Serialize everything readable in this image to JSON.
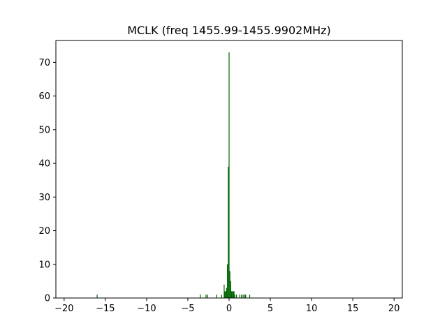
{
  "chart_data": {
    "type": "bar",
    "title": "MCLK (freq 1455.99-1455.9902MHz)",
    "xlabel": "",
    "ylabel": "",
    "xlim": [
      -21,
      21
    ],
    "ylim": [
      0,
      76.5
    ],
    "xticks": [
      -20,
      -15,
      -10,
      -5,
      0,
      5,
      10,
      15,
      20
    ],
    "xtick_labels": [
      "−20",
      "−15",
      "−10",
      "−5",
      "0",
      "5",
      "10",
      "15",
      "20"
    ],
    "yticks": [
      0,
      10,
      20,
      30,
      40,
      50,
      60,
      70
    ],
    "ytick_labels": [
      "0",
      "10",
      "20",
      "30",
      "40",
      "50",
      "60",
      "70"
    ],
    "grid": false,
    "bar_color": "#006400",
    "bar_width": 0.1,
    "bins": [
      {
        "x": -16.0,
        "value": 1
      },
      {
        "x": -3.5,
        "value": 1
      },
      {
        "x": -2.8,
        "value": 1
      },
      {
        "x": -2.6,
        "value": 1
      },
      {
        "x": -1.5,
        "value": 1
      },
      {
        "x": -0.9,
        "value": 1
      },
      {
        "x": -0.6,
        "value": 4
      },
      {
        "x": -0.5,
        "value": 2
      },
      {
        "x": -0.4,
        "value": 2
      },
      {
        "x": -0.3,
        "value": 3
      },
      {
        "x": -0.2,
        "value": 10
      },
      {
        "x": -0.1,
        "value": 39
      },
      {
        "x": 0.0,
        "value": 73
      },
      {
        "x": 0.1,
        "value": 8
      },
      {
        "x": 0.2,
        "value": 5
      },
      {
        "x": 0.3,
        "value": 2
      },
      {
        "x": 0.4,
        "value": 2
      },
      {
        "x": 0.5,
        "value": 2
      },
      {
        "x": 0.6,
        "value": 2
      },
      {
        "x": 0.7,
        "value": 1
      },
      {
        "x": 0.9,
        "value": 1
      },
      {
        "x": 1.3,
        "value": 1
      },
      {
        "x": 1.5,
        "value": 1
      },
      {
        "x": 1.7,
        "value": 1
      },
      {
        "x": 1.9,
        "value": 1
      },
      {
        "x": 2.0,
        "value": 1
      },
      {
        "x": 2.5,
        "value": 1
      }
    ]
  }
}
